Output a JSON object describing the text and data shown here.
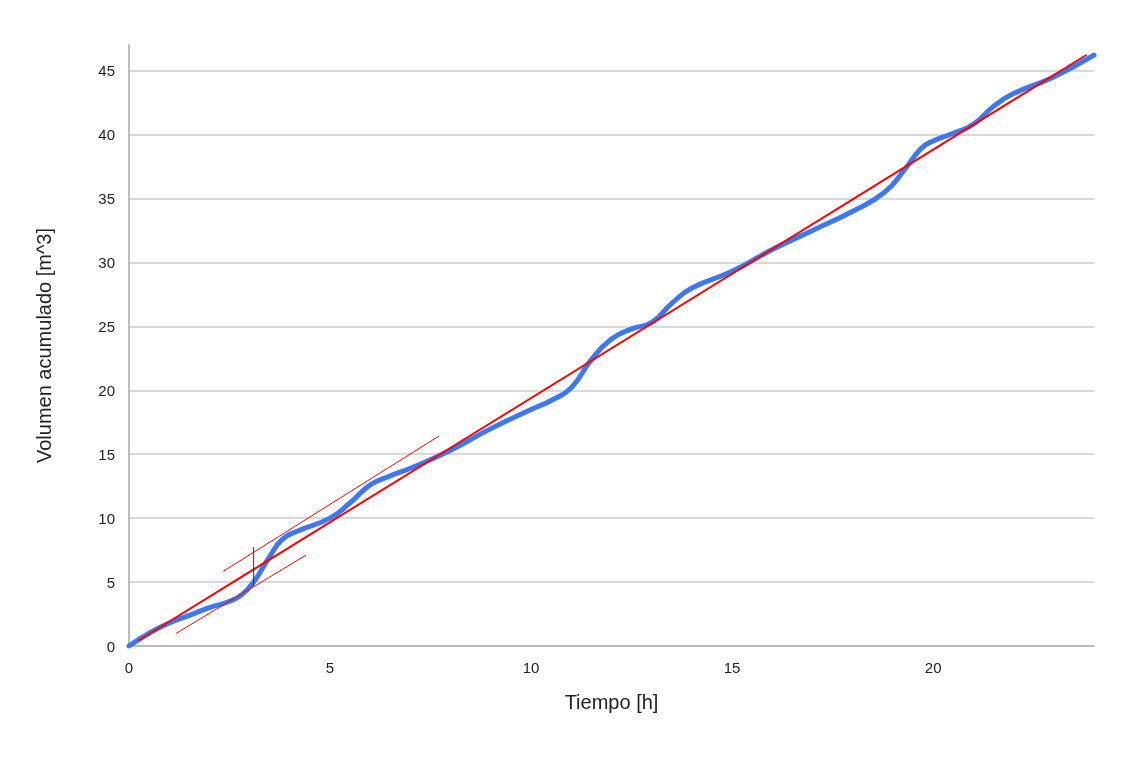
{
  "chart_data": {
    "type": "line",
    "xlabel": "Tiempo [h]",
    "ylabel": "Volumen acumulado [m^3]",
    "xlim": [
      0,
      24
    ],
    "xticks": [
      0,
      5,
      10,
      15,
      20
    ],
    "ylim": [
      0,
      47
    ],
    "yticks": [
      0,
      5,
      10,
      15,
      20,
      25,
      30,
      35,
      40,
      45
    ],
    "grid": "y",
    "marker": "none",
    "series": [
      {
        "color": "#3c78f0",
        "x": [
          0,
          0.5,
          1,
          1.5,
          2,
          2.5,
          2.8,
          3.1,
          3.5,
          3.8,
          4.2,
          5,
          5.5,
          6,
          6.5,
          7,
          8,
          9,
          10,
          10.5,
          11,
          11.5,
          12,
          12.5,
          13,
          13.5,
          14,
          15,
          16,
          17,
          18,
          18.8,
          19.3,
          19.7,
          20,
          20.5,
          21,
          21.5,
          22,
          23,
          24
        ],
        "values": [
          0,
          1.0,
          1.8,
          2.4,
          3.0,
          3.5,
          4.0,
          5.0,
          7.0,
          8.3,
          9.0,
          10,
          11.2,
          12.6,
          13.3,
          13.9,
          15.3,
          17,
          18.5,
          19.2,
          20.2,
          22.4,
          24,
          24.8,
          25.3,
          26.8,
          28,
          29.3,
          31,
          32.5,
          34,
          35.5,
          37.3,
          38.9,
          39.5,
          40.1,
          40.8,
          42.2,
          43.2,
          44.5,
          46.2
        ]
      },
      {
        "color": "#ff0000",
        "x": [
          0.25,
          23.8
        ],
        "values": [
          0.45,
          46.2
        ]
      },
      {
        "color": "#ff0000",
        "x": [
          2.35,
          7.7
        ],
        "values": [
          5.85,
          16.4
        ]
      },
      {
        "color": "#ff0000",
        "x": [
          1.18,
          4.4
        ],
        "values": [
          1.0,
          7.1
        ]
      },
      {
        "color": "#333333",
        "x": [
          3.1,
          3.1
        ],
        "values": [
          4.7,
          7.7
        ]
      }
    ]
  }
}
